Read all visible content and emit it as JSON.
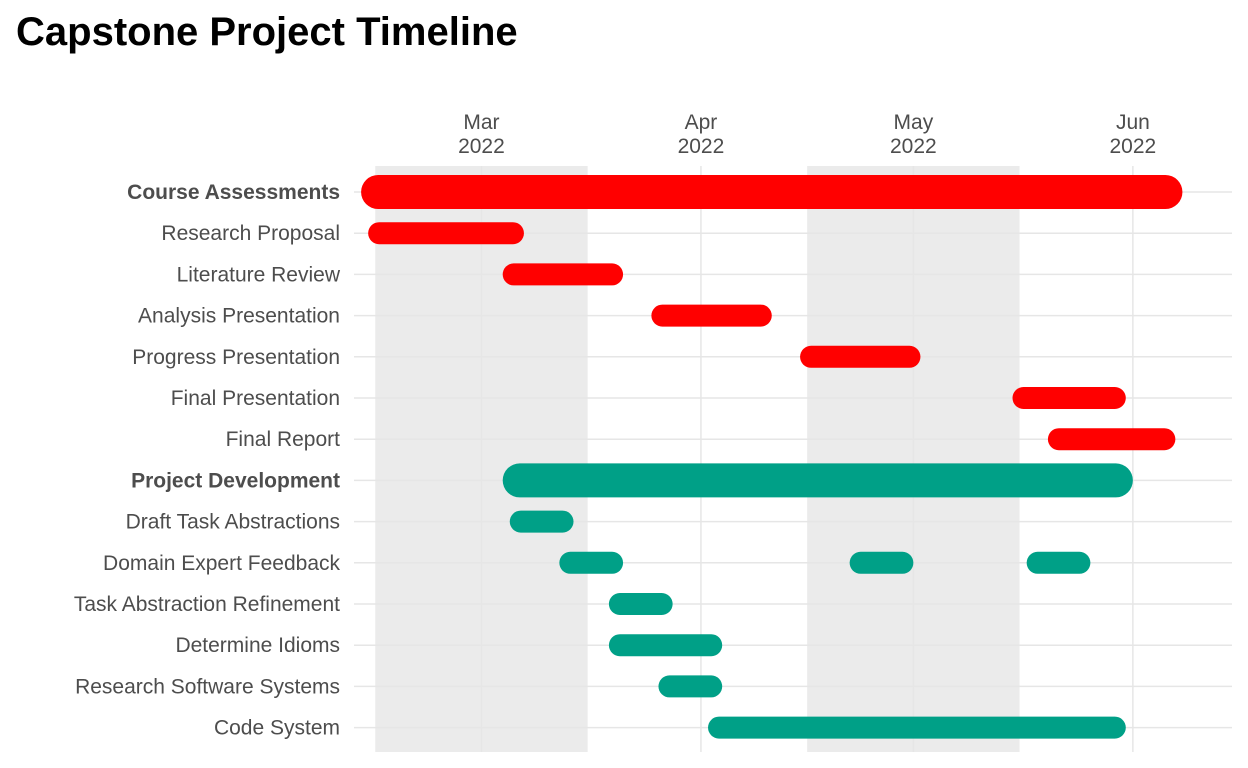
{
  "chart_data": {
    "type": "gantt",
    "title": "Capstone Project Timeline",
    "x_axis": {
      "position": "top",
      "range": [
        "2022-02-11",
        "2022-06-15"
      ],
      "ticks": [
        {
          "date": "2022-03-01",
          "month": "Mar",
          "year": "2022"
        },
        {
          "date": "2022-04-01",
          "month": "Apr",
          "year": "2022"
        },
        {
          "date": "2022-05-01",
          "month": "May",
          "year": "2022"
        },
        {
          "date": "2022-06-01",
          "month": "Jun",
          "year": "2022"
        }
      ]
    },
    "shaded_months": [
      {
        "start": "2022-02-14",
        "end": "2022-03-16"
      },
      {
        "start": "2022-04-16",
        "end": "2022-05-16"
      }
    ],
    "grid": true,
    "colors": {
      "Course Assessments": "#ff0000",
      "Project Development": "#00a087",
      "shade": "#ebebeb",
      "grid": "#e6e6e6"
    },
    "groups": [
      {
        "name": "Course Assessments",
        "start": "2022-02-12",
        "end": "2022-06-08",
        "tasks": [
          {
            "name": "Research Proposal",
            "segments": [
              [
                "2022-02-13",
                "2022-03-07"
              ]
            ]
          },
          {
            "name": "Literature Review",
            "segments": [
              [
                "2022-03-04",
                "2022-03-21"
              ]
            ]
          },
          {
            "name": "Analysis Presentation",
            "segments": [
              [
                "2022-03-25",
                "2022-04-11"
              ]
            ]
          },
          {
            "name": "Progress Presentation",
            "segments": [
              [
                "2022-04-15",
                "2022-05-02"
              ]
            ]
          },
          {
            "name": "Final Presentation",
            "segments": [
              [
                "2022-05-15",
                "2022-05-31"
              ]
            ]
          },
          {
            "name": "Final Report",
            "segments": [
              [
                "2022-05-20",
                "2022-06-07"
              ]
            ]
          }
        ]
      },
      {
        "name": "Project Development",
        "start": "2022-03-04",
        "end": "2022-06-01",
        "tasks": [
          {
            "name": "Draft Task Abstractions",
            "segments": [
              [
                "2022-03-05",
                "2022-03-14"
              ]
            ]
          },
          {
            "name": "Domain Expert Feedback",
            "segments": [
              [
                "2022-03-12",
                "2022-03-21"
              ],
              [
                "2022-04-22",
                "2022-05-01"
              ],
              [
                "2022-05-17",
                "2022-05-26"
              ]
            ]
          },
          {
            "name": "Task Abstraction Refinement",
            "segments": [
              [
                "2022-03-19",
                "2022-03-28"
              ]
            ]
          },
          {
            "name": "Determine Idioms",
            "segments": [
              [
                "2022-03-19",
                "2022-04-04"
              ]
            ]
          },
          {
            "name": "Research Software Systems",
            "segments": [
              [
                "2022-03-26",
                "2022-04-04"
              ]
            ]
          },
          {
            "name": "Code System",
            "segments": [
              [
                "2022-04-02",
                "2022-05-31"
              ]
            ]
          }
        ]
      }
    ]
  }
}
